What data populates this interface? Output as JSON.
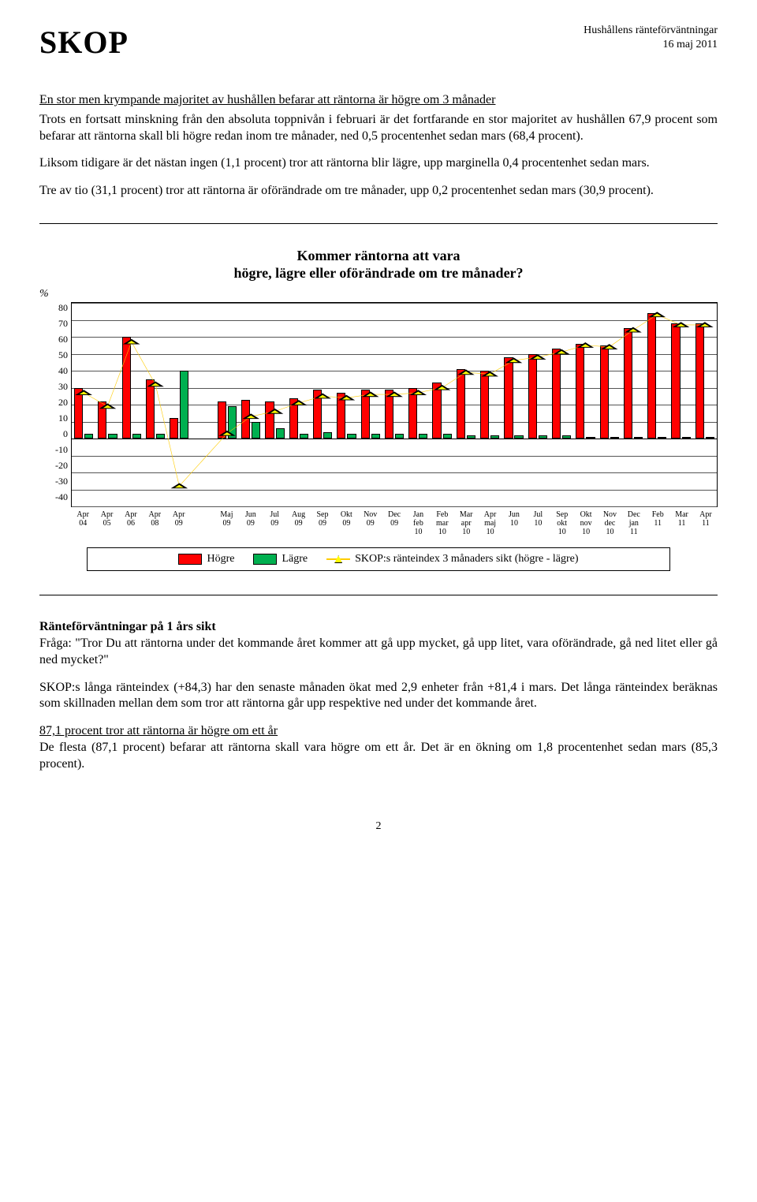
{
  "header": {
    "brand": "SKOP",
    "right1": "Hushållens ränteförväntningar",
    "right2": "16 maj 2011"
  },
  "paras": {
    "p1": "En stor men krympande majoritet av hushållen befarar att räntorna är högre om 3 månader",
    "p2": "Trots en fortsatt minskning från den absoluta toppnivån i februari är det fortfarande en stor majoritet av hushållen 67,9 procent som befarar att räntorna skall bli högre redan inom tre månader, ned 0,5 procentenhet sedan mars (68,4 procent).",
    "p3": "Liksom tidigare är det nästan ingen (1,1 procent) tror att räntorna blir lägre, upp marginella 0,4 procentenhet sedan mars.",
    "p4": "Tre av tio (31,1 procent) tror att räntorna är oförändrade om tre månader, upp 0,2 procentenhet sedan mars (30,9 procent).",
    "s2_title": "Ränteförväntningar på 1 års sikt",
    "s2_p1": "Fråga: \"Tror Du att räntorna under det kommande året kommer att gå upp mycket, gå upp litet, vara oförändrade, gå ned litet eller gå ned mycket?\"",
    "s2_p2": "SKOP:s långa ränteindex (+84,3) har den senaste månaden ökat med 2,9 enheter från +81,4 i mars. Det långa ränteindex beräknas som skillnaden mellan dem som tror att räntorna går upp respektive ned under det kommande året.",
    "s2_p3u": "87,1 procent tror att räntorna är högre om ett år",
    "s2_p3": "De flesta (87,1 procent) befarar att räntorna skall vara högre om ett år. Det är en ökning om 1,8 procentenhet sedan mars (85,3 procent)."
  },
  "chart": {
    "title1": "Kommer räntorna att vara",
    "title2": "högre, lägre eller oförändrade om tre månader?",
    "y_symbol": "%",
    "ylim": [
      -40,
      80
    ],
    "ytick_step": 10,
    "yticks": [
      80,
      70,
      60,
      50,
      40,
      30,
      20,
      10,
      0,
      -10,
      -20,
      -30,
      -40
    ],
    "x_labels": [
      "Apr 04",
      "Apr 05",
      "Apr 06",
      "Apr 08",
      "Apr 09",
      "",
      "Maj 09",
      "Jun 09",
      "Jul 09",
      "Aug 09",
      "Sep 09",
      "Okt 09",
      "Nov 09",
      "Dec 09",
      "Jan feb 10",
      "Feb mar 10",
      "Mar apr 10",
      "Apr maj 10",
      "Jun 10",
      "Jul 10",
      "Sep okt 10",
      "Okt nov 10",
      "Nov dec 10",
      "Dec jan 11",
      "Feb 11",
      "Mar 11",
      "Apr 11"
    ],
    "series": {
      "hogre": [
        30,
        22,
        60,
        35,
        12,
        null,
        22,
        23,
        22,
        24,
        29,
        27,
        29,
        29,
        30,
        33,
        41,
        40,
        48,
        50,
        53,
        56,
        55,
        65,
        74,
        68,
        68
      ],
      "lagre": [
        3,
        3,
        3,
        3,
        40,
        null,
        19,
        10,
        6,
        3,
        4,
        3,
        3,
        3,
        3,
        3,
        2,
        2,
        2,
        2,
        2,
        1,
        1,
        1,
        1,
        1,
        1
      ],
      "index": [
        27,
        19,
        57,
        32,
        -28,
        null,
        3,
        13,
        16,
        21,
        25,
        24,
        26,
        26,
        27,
        30,
        39,
        38,
        46,
        48,
        51,
        55,
        54,
        64,
        73,
        67,
        67
      ]
    },
    "colors": {
      "hogre": "#ff0000",
      "lagre": "#00b050",
      "index_line": "#ffcc00",
      "index_marker": "#ffff00",
      "grid": "#555555",
      "background": "#ffffff"
    },
    "legend": {
      "hogre": "Högre",
      "lagre": "Lägre",
      "index": "SKOP:s ränteindex 3 månaders sikt (högre - lägre)"
    }
  },
  "page_number": "2"
}
